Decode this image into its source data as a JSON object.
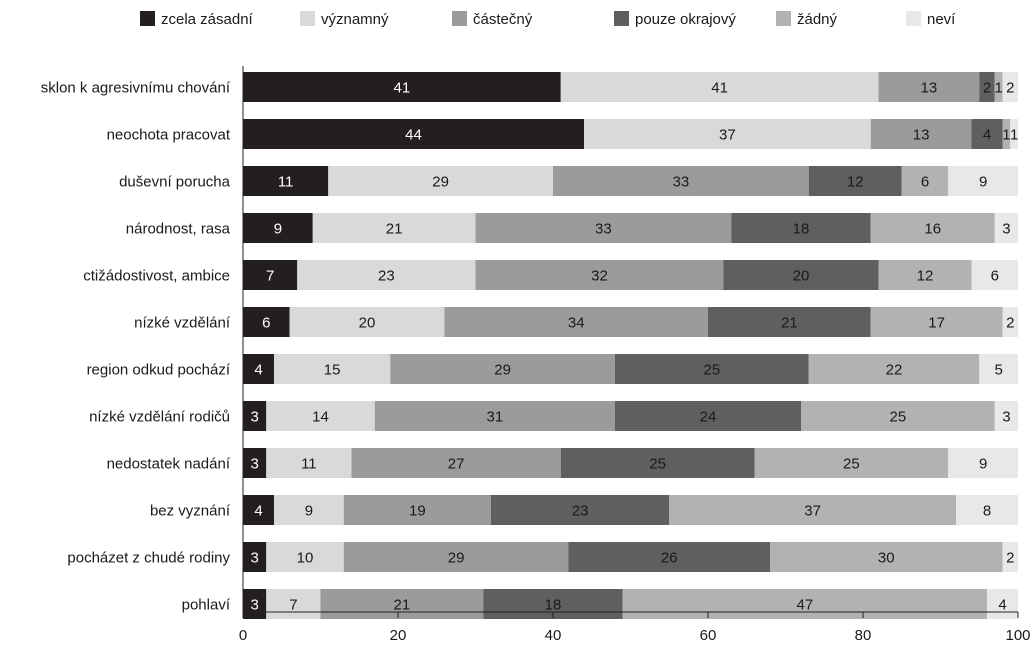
{
  "chart_data": {
    "type": "bar",
    "orientation": "horizontal",
    "stacked": true,
    "title": "",
    "xlabel": "",
    "ylabel": "",
    "xlim": [
      0,
      100
    ],
    "xticks": [
      0,
      20,
      40,
      60,
      80,
      100
    ],
    "grid": false,
    "legend": {
      "position": "top"
    },
    "categories": [
      "sklon k agresivnímu chování",
      "neochota pracovat",
      "duševní porucha",
      "národnost, rasa",
      "ctižádostivost, ambice",
      "nízké vzdělání",
      "region odkud pochází",
      "nízké vzdělání rodičů",
      "nedostatek nadání",
      "bez vyznání",
      "pocházet z chudé rodiny",
      "pohlaví"
    ],
    "series": [
      {
        "name": "zcela zásadní",
        "color": "#231f20",
        "label_color": "#ffffff",
        "values": [
          41,
          44,
          11,
          9,
          7,
          6,
          4,
          3,
          3,
          4,
          3,
          3
        ]
      },
      {
        "name": "významný",
        "color": "#d9d9d9",
        "label_color": "#1a1a1a",
        "values": [
          41,
          37,
          29,
          21,
          23,
          20,
          15,
          14,
          11,
          9,
          10,
          7
        ]
      },
      {
        "name": "částečný",
        "color": "#9b9b9b",
        "label_color": "#1a1a1a",
        "values": [
          13,
          13,
          33,
          33,
          32,
          34,
          29,
          31,
          27,
          19,
          29,
          21
        ]
      },
      {
        "name": "pouze okrajový",
        "color": "#5f5f5f",
        "label_color": "#1a1a1a",
        "values": [
          2,
          4,
          12,
          18,
          20,
          21,
          25,
          24,
          25,
          23,
          26,
          18
        ]
      },
      {
        "name": "žádný",
        "color": "#b2b2b2",
        "label_color": "#1a1a1a",
        "values": [
          1,
          1,
          6,
          16,
          12,
          17,
          22,
          25,
          25,
          37,
          30,
          47
        ]
      },
      {
        "name": "neví",
        "color": "#e8e8e8",
        "label_color": "#1a1a1a",
        "values": [
          2,
          1,
          9,
          3,
          6,
          2,
          5,
          3,
          9,
          8,
          2,
          4
        ]
      }
    ]
  }
}
